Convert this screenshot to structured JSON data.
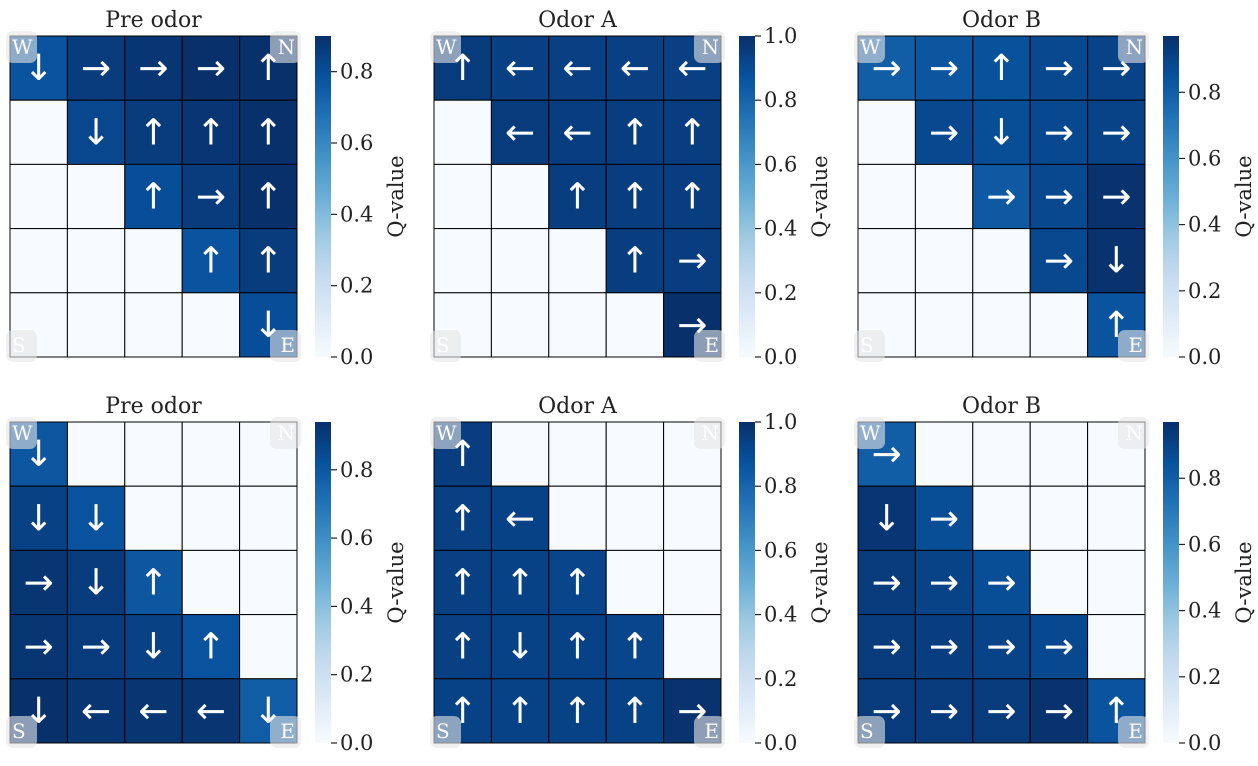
{
  "chart_data": [
    {
      "type": "heatmap",
      "title": "Pre odor",
      "colorbar_label": "Q-value",
      "colorbar_ticks": [
        "0.0",
        "0.2",
        "0.4",
        "0.6",
        "0.8"
      ],
      "colorbar_range": [
        0,
        0.9
      ],
      "corner_labels": {
        "top_left": "W",
        "top_right": "N",
        "bottom_left": "S",
        "bottom_right": "E"
      },
      "values": [
        [
          0.78,
          0.86,
          0.88,
          0.9,
          0.9
        ],
        [
          0.0,
          0.82,
          0.86,
          0.88,
          0.9
        ],
        [
          0.0,
          0.0,
          0.8,
          0.86,
          0.9
        ],
        [
          0.0,
          0.0,
          0.0,
          0.78,
          0.86
        ],
        [
          0.0,
          0.0,
          0.0,
          0.0,
          0.8
        ]
      ],
      "arrows": [
        [
          "↓",
          "→",
          "→",
          "→",
          "↑"
        ],
        [
          "",
          "↓",
          "↑",
          "↑",
          "↑"
        ],
        [
          "",
          "",
          "↑",
          "→",
          "↑"
        ],
        [
          "",
          "",
          "",
          "↑",
          "↑"
        ],
        [
          "",
          "",
          "",
          "",
          "↓"
        ]
      ]
    },
    {
      "type": "heatmap",
      "title": "Odor A",
      "colorbar_label": "Q-value",
      "colorbar_ticks": [
        "0.0",
        "0.2",
        "0.4",
        "0.6",
        "0.8",
        "1.0"
      ],
      "colorbar_range": [
        0,
        1.0
      ],
      "corner_labels": {
        "top_left": "W",
        "top_right": "N",
        "bottom_left": "S",
        "bottom_right": "E"
      },
      "values": [
        [
          0.96,
          0.94,
          0.94,
          0.94,
          0.94
        ],
        [
          0.0,
          0.96,
          0.95,
          0.95,
          0.95
        ],
        [
          0.0,
          0.0,
          0.95,
          0.95,
          0.95
        ],
        [
          0.0,
          0.0,
          0.0,
          0.95,
          0.95
        ],
        [
          0.0,
          0.0,
          0.0,
          0.0,
          1.0
        ]
      ],
      "arrows": [
        [
          "↑",
          "←",
          "←",
          "←",
          "←"
        ],
        [
          "",
          "←",
          "←",
          "↑",
          "↑"
        ],
        [
          "",
          "",
          "↑",
          "↑",
          "↑"
        ],
        [
          "",
          "",
          "",
          "↑",
          "→"
        ],
        [
          "",
          "",
          "",
          "",
          "→"
        ]
      ]
    },
    {
      "type": "heatmap",
      "title": "Odor B",
      "colorbar_label": "Q-value",
      "colorbar_ticks": [
        "0.0",
        "0.2",
        "0.4",
        "0.6",
        "0.8"
      ],
      "colorbar_range": [
        0,
        0.97
      ],
      "corner_labels": {
        "top_left": "W",
        "top_right": "N",
        "bottom_left": "S",
        "bottom_right": "E"
      },
      "values": [
        [
          0.8,
          0.83,
          0.85,
          0.88,
          0.9
        ],
        [
          0.0,
          0.88,
          0.86,
          0.88,
          0.9
        ],
        [
          0.0,
          0.0,
          0.82,
          0.88,
          0.96
        ],
        [
          0.0,
          0.0,
          0.0,
          0.88,
          0.96
        ],
        [
          0.0,
          0.0,
          0.0,
          0.0,
          0.84
        ]
      ],
      "arrows": [
        [
          "→",
          "→",
          "↑",
          "→",
          "→"
        ],
        [
          "",
          "→",
          "↓",
          "→",
          "→"
        ],
        [
          "",
          "",
          "→",
          "→",
          "→"
        ],
        [
          "",
          "",
          "",
          "→",
          "↓"
        ],
        [
          "",
          "",
          "",
          "",
          "↑"
        ]
      ]
    },
    {
      "type": "heatmap",
      "title": "Pre odor",
      "colorbar_label": "Q-value",
      "colorbar_ticks": [
        "0.0",
        "0.2",
        "0.4",
        "0.6",
        "0.8"
      ],
      "colorbar_range": [
        0,
        0.94
      ],
      "corner_labels": {
        "top_left": "W",
        "top_right": "N",
        "bottom_left": "S",
        "bottom_right": "E"
      },
      "values": [
        [
          0.8,
          0.0,
          0.0,
          0.0,
          0.0
        ],
        [
          0.88,
          0.82,
          0.0,
          0.0,
          0.0
        ],
        [
          0.92,
          0.9,
          0.8,
          0.0,
          0.0
        ],
        [
          0.92,
          0.9,
          0.88,
          0.82,
          0.0
        ],
        [
          0.94,
          0.92,
          0.92,
          0.92,
          0.78
        ]
      ],
      "arrows": [
        [
          "↓",
          "",
          "",
          "",
          ""
        ],
        [
          "↓",
          "↓",
          "",
          "",
          ""
        ],
        [
          "→",
          "↓",
          "↑",
          "",
          ""
        ],
        [
          "→",
          "→",
          "↓",
          "↑",
          ""
        ],
        [
          "↓",
          "←",
          "←",
          "←",
          "↓"
        ]
      ]
    },
    {
      "type": "heatmap",
      "title": "Odor A",
      "colorbar_label": "Q-value",
      "colorbar_ticks": [
        "0.0",
        "0.2",
        "0.4",
        "0.6",
        "0.8",
        "1.0"
      ],
      "colorbar_range": [
        0,
        1.0
      ],
      "corner_labels": {
        "top_left": "W",
        "top_right": "N",
        "bottom_left": "S",
        "bottom_right": "E"
      },
      "values": [
        [
          0.95,
          0.0,
          0.0,
          0.0,
          0.0
        ],
        [
          0.94,
          0.93,
          0.0,
          0.0,
          0.0
        ],
        [
          0.94,
          0.93,
          0.92,
          0.0,
          0.0
        ],
        [
          0.94,
          0.93,
          0.93,
          0.92,
          0.0
        ],
        [
          0.93,
          0.93,
          0.93,
          0.93,
          0.99
        ]
      ],
      "arrows": [
        [
          "↑",
          "",
          "",
          "",
          ""
        ],
        [
          "↑",
          "←",
          "",
          "",
          ""
        ],
        [
          "↑",
          "↑",
          "↑",
          "",
          ""
        ],
        [
          "↑",
          "↓",
          "↑",
          "↑",
          ""
        ],
        [
          "↑",
          "↑",
          "↑",
          "↑",
          "→"
        ]
      ]
    },
    {
      "type": "heatmap",
      "title": "Odor B",
      "colorbar_label": "Q-value",
      "colorbar_ticks": [
        "0.0",
        "0.2",
        "0.4",
        "0.6",
        "0.8"
      ],
      "colorbar_range": [
        0,
        0.97
      ],
      "corner_labels": {
        "top_left": "W",
        "top_right": "N",
        "bottom_left": "S",
        "bottom_right": "E"
      },
      "values": [
        [
          0.8,
          0.0,
          0.0,
          0.0,
          0.0
        ],
        [
          0.95,
          0.86,
          0.0,
          0.0,
          0.0
        ],
        [
          0.93,
          0.9,
          0.86,
          0.0,
          0.0
        ],
        [
          0.93,
          0.92,
          0.9,
          0.88,
          0.0
        ],
        [
          0.93,
          0.93,
          0.93,
          0.96,
          0.84
        ]
      ],
      "arrows": [
        [
          "→",
          "",
          "",
          "",
          ""
        ],
        [
          "↓",
          "→",
          "",
          "",
          ""
        ],
        [
          "→",
          "→",
          "→",
          "",
          ""
        ],
        [
          "→",
          "→",
          "→",
          "→",
          ""
        ],
        [
          "→",
          "→",
          "→",
          "→",
          "↑"
        ]
      ]
    }
  ]
}
